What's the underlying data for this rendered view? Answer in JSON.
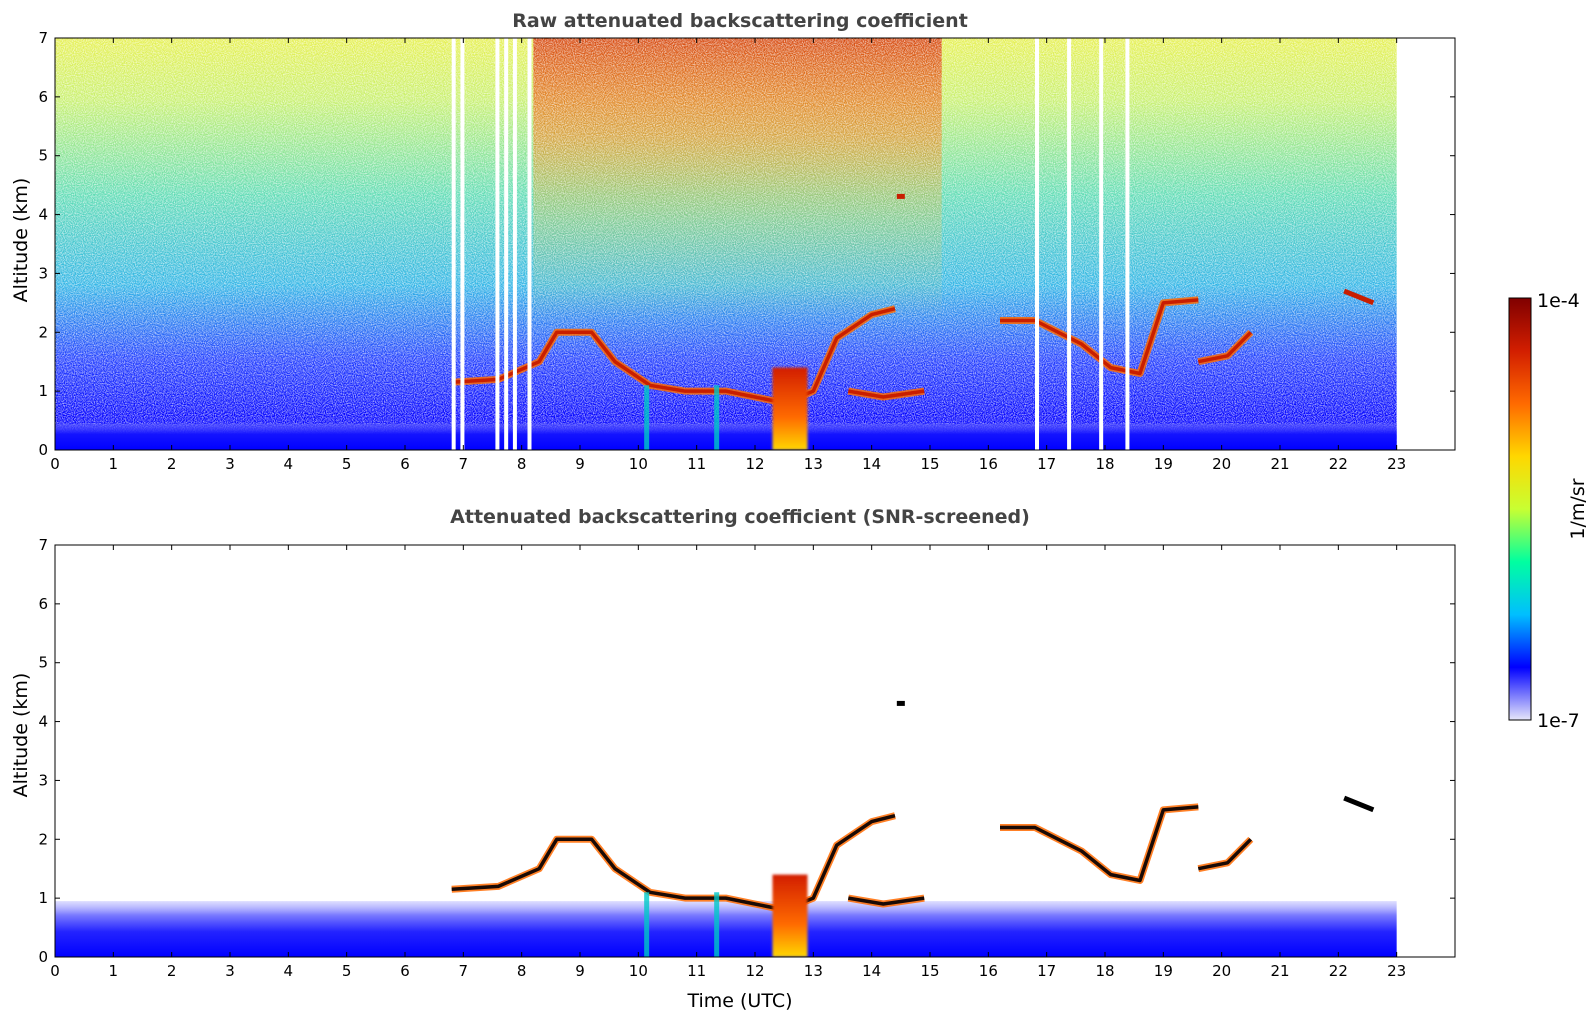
{
  "chart_data": [
    {
      "type": "heatmap",
      "title": "Raw attenuated backscattering coefficient",
      "xlabel": "",
      "ylabel": "Altitude (km)",
      "xlim": [
        0,
        24
      ],
      "ylim": [
        0,
        7
      ],
      "x_ticks": [
        "0",
        "1",
        "2",
        "3",
        "4",
        "5",
        "6",
        "7",
        "8",
        "9",
        "10",
        "11",
        "12",
        "13",
        "14",
        "15",
        "16",
        "17",
        "18",
        "19",
        "20",
        "21",
        "22",
        "23"
      ],
      "y_ticks": [
        "0",
        "1",
        "2",
        "3",
        "4",
        "5",
        "6",
        "7"
      ],
      "data_extent_hours": [
        0,
        23
      ],
      "screened": false,
      "data_gaps_utc": [
        6.8,
        6.95,
        7.55,
        7.7,
        7.85,
        8.1,
        16.8,
        17.35,
        17.9,
        18.35
      ],
      "features": [
        {
          "name": "boundary layer",
          "altitude_km": [
            0,
            0.45
          ],
          "time_utc": [
            0,
            23
          ]
        },
        {
          "name": "cloud layer",
          "time_utc": [
            6.8,
            20.6
          ],
          "altitude_km": [
            1.0,
            2.7
          ]
        },
        {
          "name": "dense cloud / precipitation",
          "time_utc": [
            12.3,
            12.9
          ],
          "altitude_km": [
            0,
            1.4
          ]
        },
        {
          "name": "isolated cloud",
          "time_utc": [
            14.5
          ],
          "altitude_km": [
            4.3
          ]
        },
        {
          "name": "cloud",
          "time_utc": [
            22.1,
            22.6
          ],
          "altitude_km": [
            2.5,
            2.7
          ]
        }
      ]
    },
    {
      "type": "heatmap",
      "title": "Attenuated backscattering coefficient (SNR-screened)",
      "xlabel": "Time (UTC)",
      "ylabel": "Altitude (km)",
      "xlim": [
        0,
        24
      ],
      "ylim": [
        0,
        7
      ],
      "x_ticks": [
        "0",
        "1",
        "2",
        "3",
        "4",
        "5",
        "6",
        "7",
        "8",
        "9",
        "10",
        "11",
        "12",
        "13",
        "14",
        "15",
        "16",
        "17",
        "18",
        "19",
        "20",
        "21",
        "22",
        "23"
      ],
      "y_ticks": [
        "0",
        "1",
        "2",
        "3",
        "4",
        "5",
        "6",
        "7"
      ],
      "data_extent_hours": [
        0,
        23
      ],
      "screened": true,
      "features": [
        {
          "name": "boundary layer",
          "altitude_km": [
            0,
            0.95
          ],
          "time_utc": [
            0,
            23
          ]
        },
        {
          "name": "cloud layer",
          "time_utc": [
            6.5,
            20.6
          ],
          "altitude_km": [
            1.0,
            2.7
          ]
        },
        {
          "name": "dense cloud / precipitation",
          "time_utc": [
            12.3,
            12.9
          ],
          "altitude_km": [
            0,
            1.4
          ]
        },
        {
          "name": "isolated cloud",
          "time_utc": [
            14.5
          ],
          "altitude_km": [
            4.3
          ]
        },
        {
          "name": "cloud",
          "time_utc": [
            22.1,
            22.6
          ],
          "altitude_km": [
            2.5,
            2.7
          ]
        }
      ]
    }
  ],
  "colorbar": {
    "label": "1/m/sr",
    "max_label": "1e-4",
    "min_label": "1e-7",
    "colormap": "jet",
    "colors": [
      "#e6e6fa",
      "#0000ff",
      "#00bfff",
      "#00ffa0",
      "#c8ff32",
      "#ffd700",
      "#ff6a00",
      "#d21e00",
      "#800000"
    ]
  }
}
